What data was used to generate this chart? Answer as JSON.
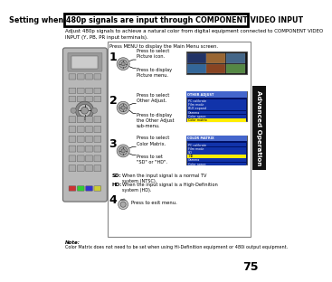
{
  "title": "Setting when 480p signals are input through COMPONENT VIDEO INPUT",
  "subtitle": "Adjust 480p signals to achieve a natural color from digital equipment connected to COMPONENT VIDEO\nINPUT (Y, PB, PR input terminals).",
  "header_text": "Press MENU to display the Main Menu screen.",
  "step1_label": "1",
  "step1_text1": "Press to select\nPicture icon.",
  "step1_text2": "Press to display\nPicture menu.",
  "step2_label": "2",
  "step2_text1": "Press to select\nOther Adjust.",
  "step2_text2": "Press to display\nthe Other Adjust\nsub-menu.",
  "step3_label": "3",
  "step3_text1": "Press to select\nColor Matrix.",
  "step3_text2": "Press to set\n\"SD\" or \"HD\".",
  "step4_label": "4",
  "step4_text": "Press to exit menu.",
  "sd_label": "SD:",
  "sd_text": "When the input signal is a normal TV\nsystem (NTSC).",
  "hd_label": "HD:",
  "hd_text": "When the input signal is a High-Definition\nsystem (HD).",
  "note_label": "Note:",
  "note_text": "Color Matrix does not need to be set when using Hi-Definition equipment or 480i output equipment.",
  "page_number": "75",
  "sidebar_text": "Advanced Operation",
  "bg_color": "#ffffff",
  "title_fg": "#000000",
  "sidebar_bg": "#111111",
  "sidebar_fg": "#ffffff",
  "remote_body": "#b8b8b8",
  "remote_dark": "#888888",
  "screen_blue": "#1133aa",
  "screen_dark": "#001166",
  "highlight_yellow": "#ffee00",
  "highlight_blue": "#4466cc"
}
